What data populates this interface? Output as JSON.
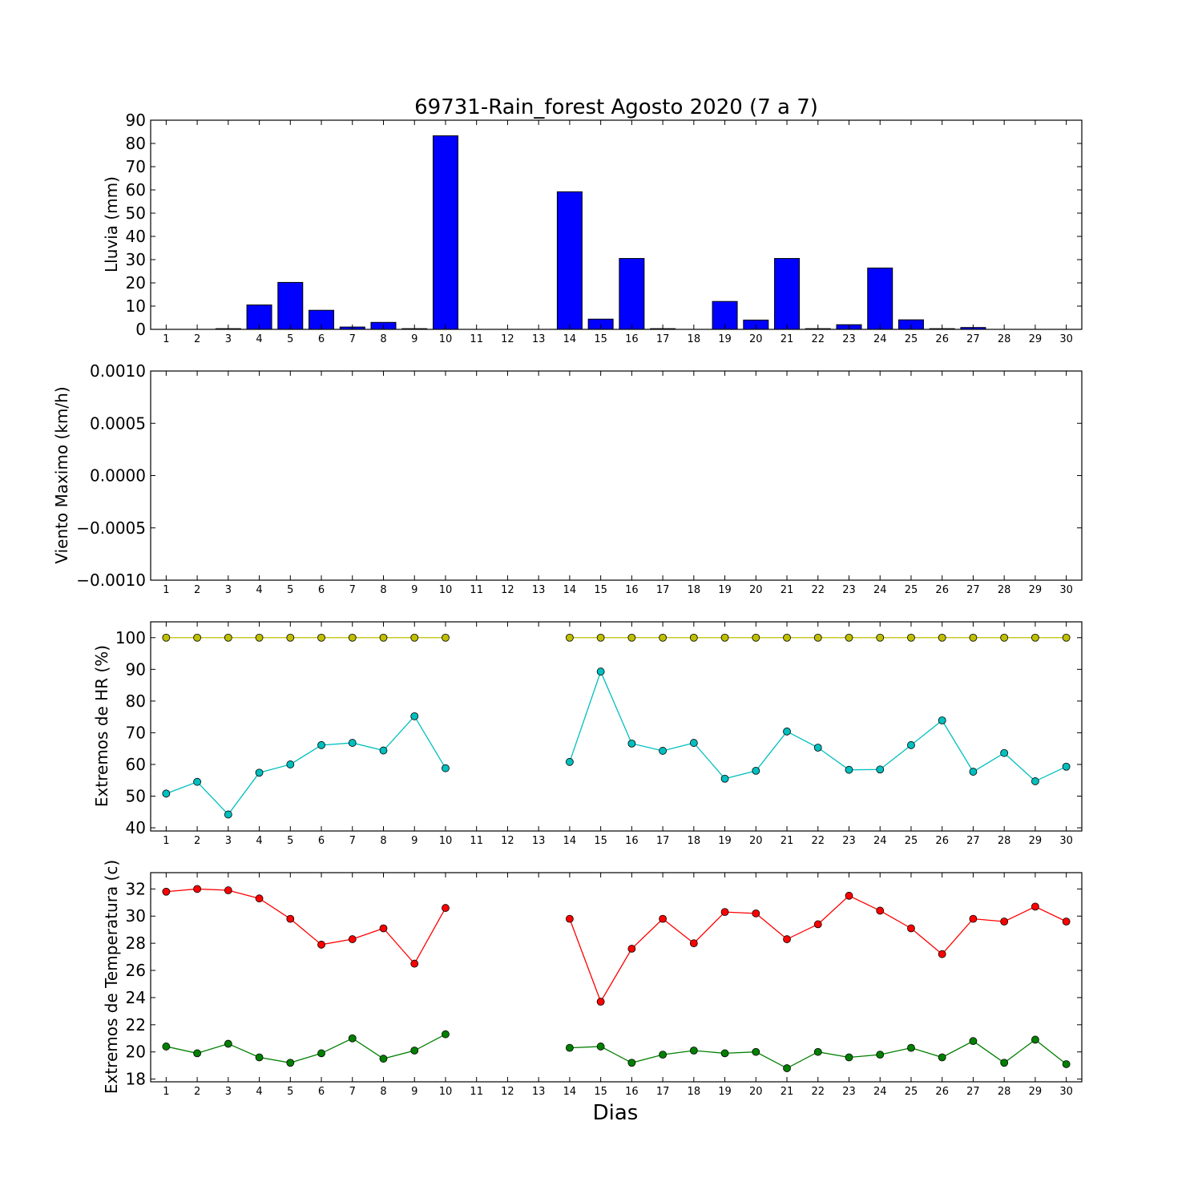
{
  "figure": {
    "title": "69731-Rain_forest Agosto 2020  (7 a 7)",
    "xlabel": "Dias"
  },
  "chart_data": [
    {
      "type": "bar",
      "id": "rain",
      "ylabel": "Lluvia (mm)",
      "ylim": [
        0,
        90
      ],
      "yticks": [
        0,
        10,
        20,
        30,
        40,
        50,
        60,
        70,
        80,
        90
      ],
      "ytick_labels": [
        "0",
        "10",
        "20",
        "30",
        "40",
        "50",
        "60",
        "70",
        "80",
        "90"
      ],
      "categories": [
        "1",
        "2",
        "3",
        "4",
        "5",
        "6",
        "7",
        "8",
        "9",
        "10",
        "11",
        "12",
        "13",
        "14",
        "15",
        "16",
        "17",
        "18",
        "19",
        "20",
        "21",
        "22",
        "23",
        "24",
        "25",
        "26",
        "27",
        "28",
        "29",
        "30"
      ],
      "color": "#0000ff",
      "values": [
        0,
        0,
        0.3,
        10.5,
        20.2,
        8.2,
        1.0,
        3.0,
        0.3,
        83.3,
        0,
        0,
        0,
        59.2,
        4.4,
        30.5,
        0.3,
        0,
        12.0,
        4.0,
        30.5,
        0.3,
        2.0,
        26.4,
        4.1,
        0.3,
        0.8,
        0,
        0,
        0
      ],
      "grid": false
    },
    {
      "type": "line",
      "id": "wind",
      "ylabel": "Viento Maximo (km/h)",
      "ylim": [
        -0.001,
        0.001
      ],
      "yticks": [
        -0.001,
        -0.0005,
        0,
        0.0005,
        0.001
      ],
      "ytick_labels": [
        "−0.0010",
        "−0.0005",
        "0.0000",
        "0.0005",
        "0.0010"
      ],
      "categories": [
        "1",
        "2",
        "3",
        "4",
        "5",
        "6",
        "7",
        "8",
        "9",
        "10",
        "11",
        "12",
        "13",
        "14",
        "15",
        "16",
        "17",
        "18",
        "19",
        "20",
        "21",
        "22",
        "23",
        "24",
        "25",
        "26",
        "27",
        "28",
        "29",
        "30"
      ],
      "series": [],
      "grid": false
    },
    {
      "type": "line",
      "id": "humidity",
      "ylabel": "Extremos de HR (%)",
      "ylim": [
        39,
        105
      ],
      "yticks": [
        40,
        50,
        60,
        70,
        80,
        90,
        100
      ],
      "ytick_labels": [
        "40",
        "50",
        "60",
        "70",
        "80",
        "90",
        "100"
      ],
      "categories": [
        "1",
        "2",
        "3",
        "4",
        "5",
        "6",
        "7",
        "8",
        "9",
        "10",
        "11",
        "12",
        "13",
        "14",
        "15",
        "16",
        "17",
        "18",
        "19",
        "20",
        "21",
        "22",
        "23",
        "24",
        "25",
        "26",
        "27",
        "28",
        "29",
        "30"
      ],
      "series": [
        {
          "color": "#bfbf00",
          "values": [
            100,
            100,
            100,
            100,
            100,
            100,
            100,
            100,
            100,
            100,
            null,
            null,
            null,
            100,
            100,
            100,
            100,
            100,
            100,
            100,
            100,
            100,
            100,
            100,
            100,
            100,
            100,
            100,
            100,
            100
          ]
        },
        {
          "color": "#00bfbf",
          "values": [
            50.8,
            54.5,
            44.2,
            57.4,
            60.0,
            66.1,
            66.8,
            64.4,
            75.2,
            58.8,
            null,
            null,
            null,
            60.8,
            89.3,
            66.6,
            64.3,
            66.8,
            55.5,
            58.0,
            70.4,
            65.3,
            58.3,
            58.4,
            66.1,
            73.9,
            57.7,
            63.6,
            54.7,
            59.3
          ]
        }
      ],
      "grid": false
    },
    {
      "type": "line",
      "id": "temperature",
      "ylabel": "Extremos de Temperatura (c)",
      "ylim": [
        17.8,
        33.2
      ],
      "yticks": [
        18,
        20,
        22,
        24,
        26,
        28,
        30,
        32
      ],
      "ytick_labels": [
        "18",
        "20",
        "22",
        "24",
        "26",
        "28",
        "30",
        "32"
      ],
      "categories": [
        "1",
        "2",
        "3",
        "4",
        "5",
        "6",
        "7",
        "8",
        "9",
        "10",
        "11",
        "12",
        "13",
        "14",
        "15",
        "16",
        "17",
        "18",
        "19",
        "20",
        "21",
        "22",
        "23",
        "24",
        "25",
        "26",
        "27",
        "28",
        "29",
        "30"
      ],
      "series": [
        {
          "color": "#ff0000",
          "values": [
            31.8,
            32.0,
            31.9,
            31.3,
            29.8,
            27.9,
            28.3,
            29.1,
            26.5,
            30.6,
            null,
            null,
            null,
            29.8,
            23.7,
            27.6,
            29.8,
            28.0,
            30.3,
            30.2,
            28.3,
            29.4,
            31.5,
            30.4,
            29.1,
            27.2,
            29.8,
            29.6,
            30.7,
            29.6
          ]
        },
        {
          "color": "#008000",
          "values": [
            20.4,
            19.9,
            20.6,
            19.6,
            19.2,
            19.9,
            21.0,
            19.5,
            20.1,
            21.3,
            null,
            null,
            null,
            20.3,
            20.4,
            19.2,
            19.8,
            20.1,
            19.9,
            20.0,
            18.8,
            20.0,
            19.6,
            19.8,
            20.3,
            19.6,
            20.8,
            19.2,
            20.9,
            19.1
          ]
        }
      ],
      "grid": false
    }
  ]
}
